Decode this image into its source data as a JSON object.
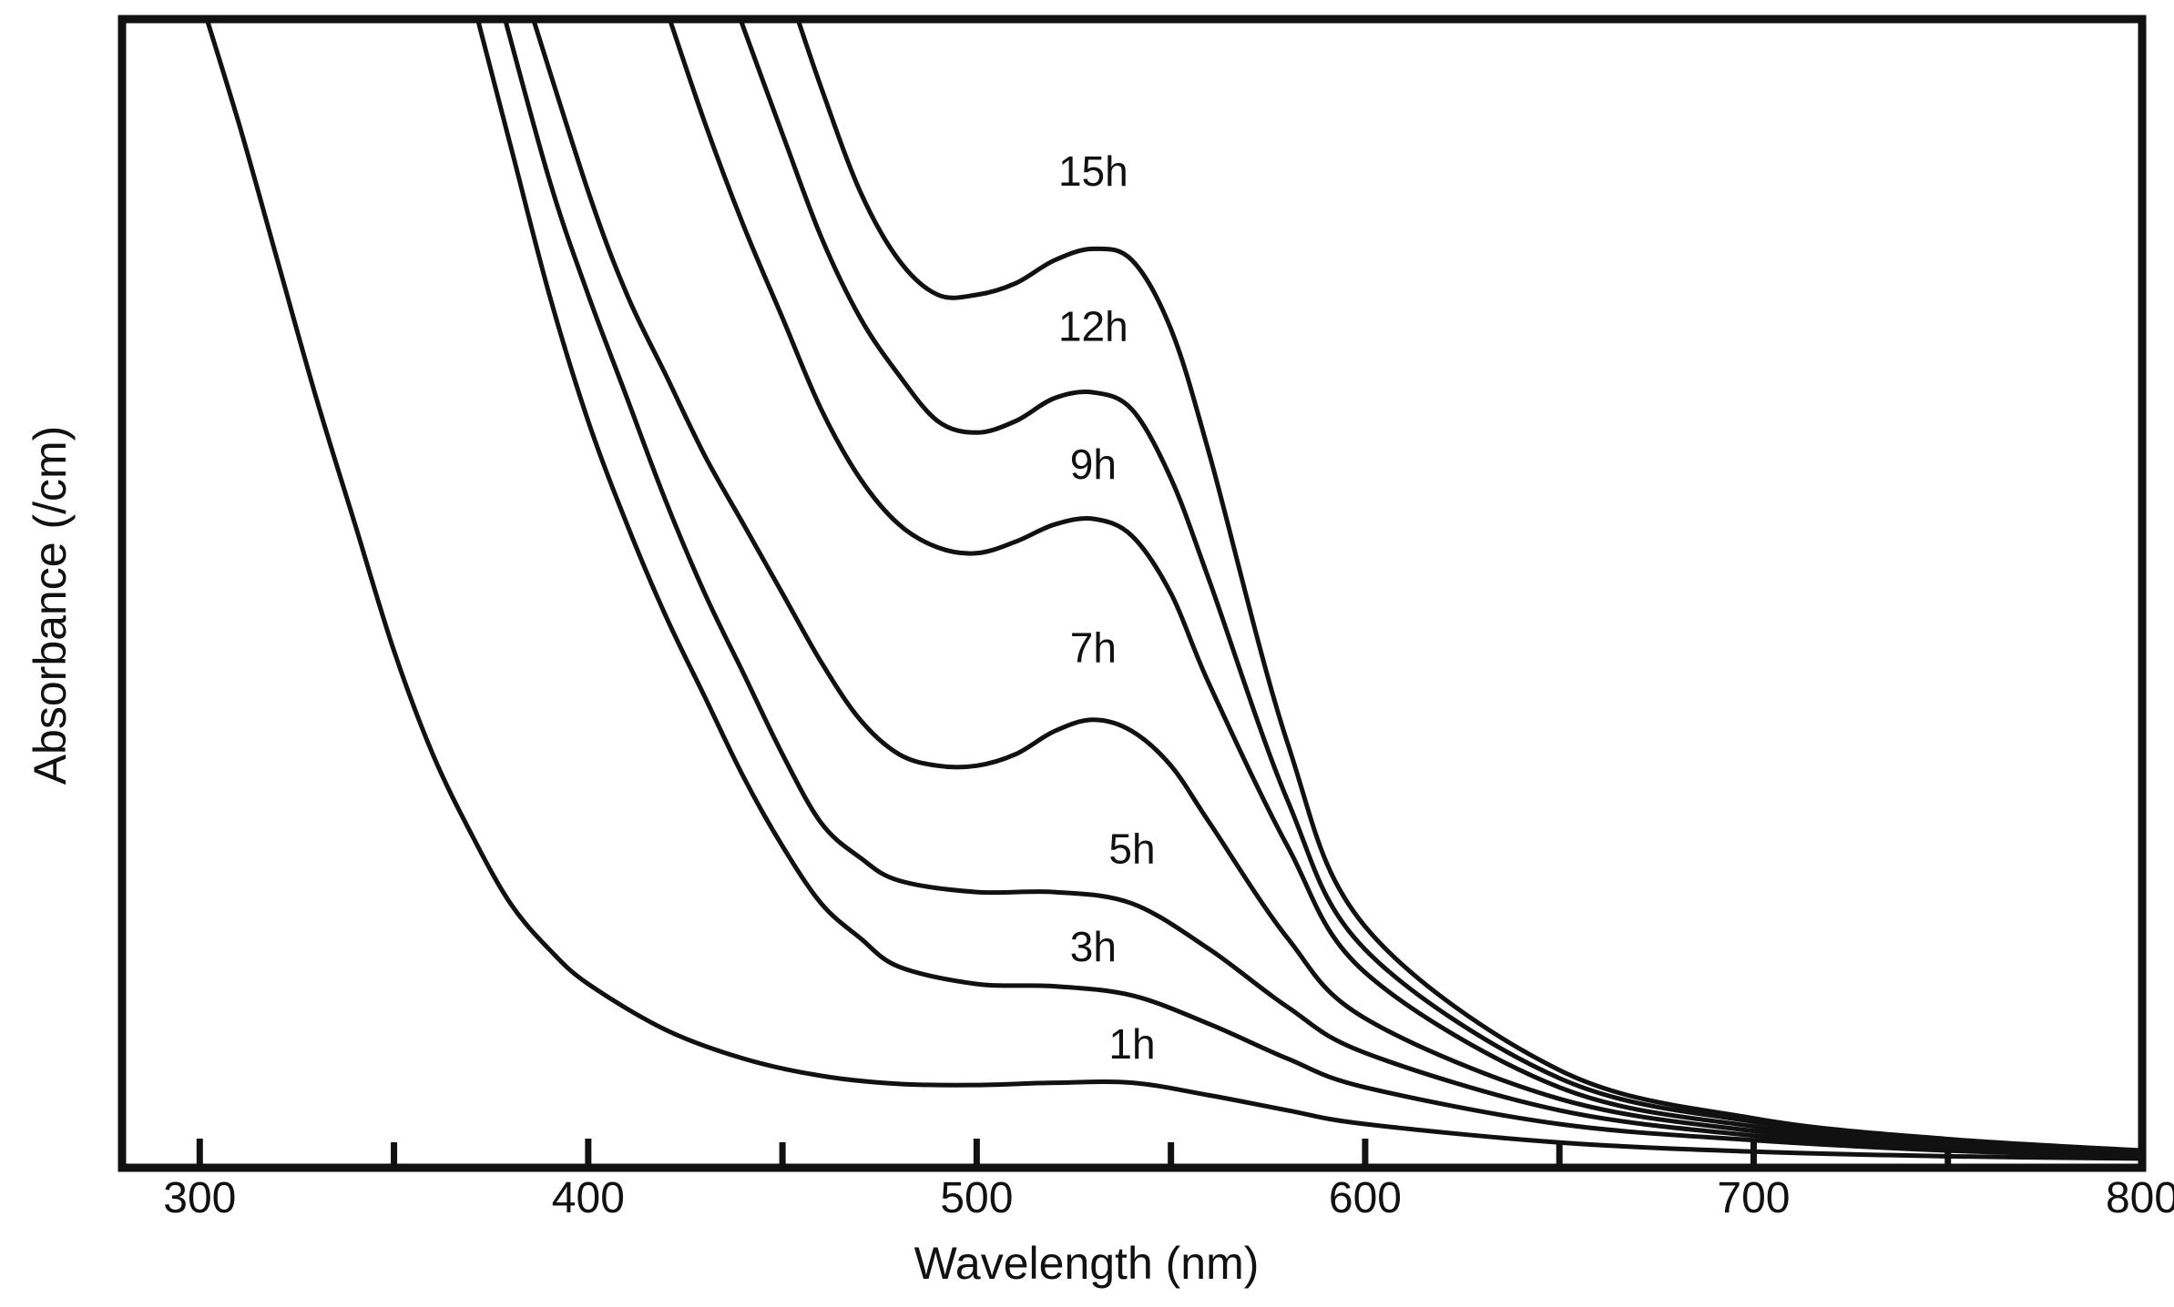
{
  "chart_data": {
    "type": "line",
    "title": "",
    "xlabel": "Wavelength (nm)",
    "ylabel": "Absorbance (/cm)",
    "xlim": [
      280,
      800
    ],
    "ylim": [
      0,
      1
    ],
    "grid": false,
    "legend": "inline labels near curves",
    "x_ticks": [
      300,
      400,
      500,
      600,
      700,
      800
    ],
    "x_minor_ticks": [
      350,
      450,
      550,
      650,
      750
    ],
    "y_ticks_visible": false,
    "line_color": "#111111",
    "series": [
      {
        "name": "1h",
        "x": [
          300,
          310,
          320,
          330,
          340,
          350,
          360,
          370,
          380,
          390,
          400,
          420,
          440,
          460,
          480,
          500,
          520,
          540,
          560,
          580,
          600,
          650,
          700,
          750,
          800
        ],
        "y": [
          1.02,
          0.91,
          0.79,
          0.67,
          0.56,
          0.45,
          0.36,
          0.29,
          0.23,
          0.19,
          0.16,
          0.12,
          0.095,
          0.08,
          0.073,
          0.072,
          0.074,
          0.074,
          0.063,
          0.05,
          0.038,
          0.022,
          0.014,
          0.01,
          0.008
        ]
      },
      {
        "name": "3h",
        "x": [
          370,
          380,
          390,
          400,
          410,
          420,
          430,
          440,
          450,
          460,
          470,
          480,
          500,
          520,
          540,
          560,
          580,
          600,
          650,
          700,
          750,
          800
        ],
        "y": [
          1.02,
          0.89,
          0.76,
          0.65,
          0.56,
          0.48,
          0.41,
          0.34,
          0.28,
          0.23,
          0.2,
          0.175,
          0.16,
          0.158,
          0.15,
          0.125,
          0.095,
          0.07,
          0.038,
          0.024,
          0.015,
          0.01
        ]
      },
      {
        "name": "5h",
        "x": [
          377,
          390,
          400,
          410,
          420,
          430,
          440,
          450,
          460,
          470,
          480,
          500,
          520,
          540,
          560,
          580,
          600,
          650,
          700,
          750,
          800
        ],
        "y": [
          1.02,
          0.86,
          0.76,
          0.67,
          0.58,
          0.5,
          0.43,
          0.36,
          0.3,
          0.27,
          0.25,
          0.24,
          0.24,
          0.23,
          0.19,
          0.14,
          0.1,
          0.05,
          0.028,
          0.017,
          0.011
        ]
      },
      {
        "name": "7h",
        "x": [
          384,
          400,
          410,
          420,
          430,
          440,
          450,
          460,
          470,
          480,
          490,
          500,
          510,
          520,
          530,
          540,
          550,
          560,
          580,
          600,
          650,
          700,
          750,
          800
        ],
        "y": [
          1.02,
          0.85,
          0.76,
          0.69,
          0.62,
          0.56,
          0.5,
          0.44,
          0.39,
          0.36,
          0.35,
          0.35,
          0.36,
          0.38,
          0.39,
          0.38,
          0.35,
          0.3,
          0.2,
          0.13,
          0.06,
          0.032,
          0.019,
          0.012
        ]
      },
      {
        "name": "9h",
        "x": [
          419,
          430,
          440,
          450,
          460,
          470,
          480,
          490,
          500,
          510,
          520,
          530,
          540,
          550,
          560,
          580,
          600,
          650,
          700,
          750,
          800
        ],
        "y": [
          1.02,
          0.91,
          0.82,
          0.74,
          0.66,
          0.6,
          0.56,
          0.54,
          0.535,
          0.545,
          0.56,
          0.565,
          0.55,
          0.5,
          0.42,
          0.28,
          0.17,
          0.07,
          0.036,
          0.021,
          0.013
        ]
      },
      {
        "name": "12h",
        "x": [
          437,
          450,
          460,
          470,
          480,
          490,
          500,
          510,
          520,
          530,
          540,
          550,
          560,
          580,
          600,
          650,
          700,
          750,
          800
        ],
        "y": [
          1.02,
          0.9,
          0.81,
          0.74,
          0.69,
          0.65,
          0.64,
          0.65,
          0.67,
          0.675,
          0.66,
          0.6,
          0.51,
          0.32,
          0.19,
          0.078,
          0.04,
          0.023,
          0.014
        ]
      },
      {
        "name": "15h",
        "x": [
          452,
          460,
          470,
          480,
          490,
          500,
          510,
          520,
          530,
          540,
          550,
          560,
          580,
          600,
          650,
          700,
          750,
          800
        ],
        "y": [
          1.02,
          0.94,
          0.85,
          0.79,
          0.76,
          0.76,
          0.77,
          0.79,
          0.8,
          0.79,
          0.73,
          0.62,
          0.37,
          0.21,
          0.085,
          0.043,
          0.025,
          0.015
        ]
      }
    ],
    "labels": [
      {
        "text": "15h",
        "x": 530,
        "y": 0.855
      },
      {
        "text": "12h",
        "x": 530,
        "y": 0.72
      },
      {
        "text": "9h",
        "x": 530,
        "y": 0.6
      },
      {
        "text": "7h",
        "x": 530,
        "y": 0.44
      },
      {
        "text": "5h",
        "x": 540,
        "y": 0.265
      },
      {
        "text": "3h",
        "x": 530,
        "y": 0.18
      },
      {
        "text": "1h",
        "x": 540,
        "y": 0.095
      }
    ]
  }
}
